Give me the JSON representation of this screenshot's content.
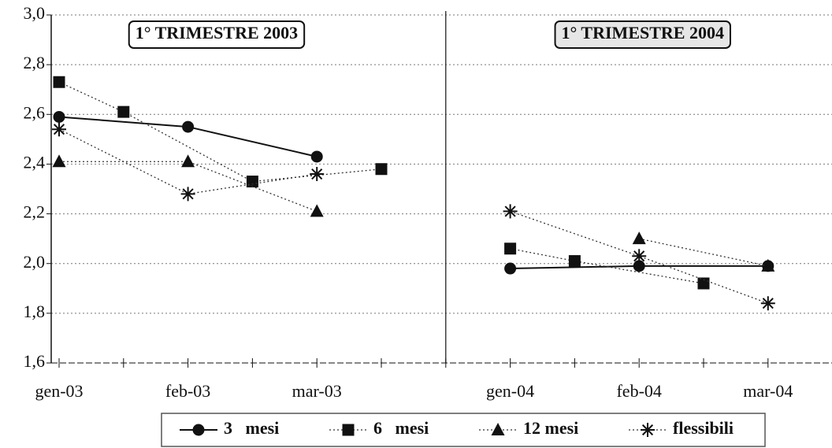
{
  "chart_data": {
    "type": "line",
    "panel_titles": [
      "1° TRIMESTRE 2003",
      "1° TRIMESTRE 2004"
    ],
    "categories": [
      "gen-03",
      null,
      "feb-03",
      null,
      "mar-03",
      null,
      null,
      "gen-04",
      null,
      "feb-04",
      null,
      "mar-04"
    ],
    "series": [
      {
        "name": "3   mesi",
        "color": "#111111",
        "marker": "circle",
        "dash": "solid",
        "values": [
          2.59,
          null,
          2.55,
          null,
          2.43,
          null,
          null,
          1.98,
          null,
          1.99,
          null,
          1.99
        ]
      },
      {
        "name": "6   mesi",
        "color": "#333333",
        "marker": "square",
        "dash": "dotted",
        "values": [
          2.73,
          2.61,
          null,
          2.33,
          null,
          2.38,
          null,
          2.06,
          2.01,
          null,
          1.92,
          null
        ]
      },
      {
        "name": "12 mesi",
        "color": "#333333",
        "marker": "triangle",
        "dash": "dotted",
        "values": [
          2.41,
          null,
          2.41,
          null,
          2.21,
          null,
          null,
          null,
          null,
          2.1,
          null,
          1.99
        ]
      },
      {
        "name": "flessibili",
        "color": "#333333",
        "marker": "star",
        "dash": "dotted",
        "values": [
          2.54,
          null,
          2.28,
          null,
          2.36,
          null,
          null,
          2.21,
          null,
          2.03,
          null,
          1.84
        ]
      }
    ],
    "ylim": [
      1.6,
      3.0
    ],
    "yticks": [
      {
        "value": 1.6,
        "label": "1,6"
      },
      {
        "value": 1.8,
        "label": "1,8"
      },
      {
        "value": 2.0,
        "label": "2,0"
      },
      {
        "value": 2.2,
        "label": "2,2"
      },
      {
        "value": 2.4,
        "label": "2,4"
      },
      {
        "value": 2.6,
        "label": "2,6"
      },
      {
        "value": 2.8,
        "label": "2,8"
      },
      {
        "value": 3.0,
        "label": "3,0"
      }
    ],
    "grid": true
  }
}
